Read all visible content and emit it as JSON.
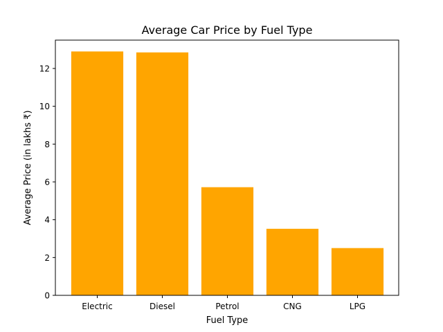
{
  "chart_data": {
    "type": "bar",
    "title": "Average Car Price by Fuel Type",
    "xlabel": "Fuel Type",
    "ylabel": "Average Price (in lakhs ₹)",
    "categories": [
      "Electric",
      "Diesel",
      "Petrol",
      "CNG",
      "LPG"
    ],
    "values": [
      12.9,
      12.85,
      5.72,
      3.52,
      2.5
    ],
    "ylim": [
      0,
      13.5
    ],
    "yticks": [
      0,
      2,
      4,
      6,
      8,
      10,
      12
    ],
    "grid": false,
    "colors": {
      "bar": "#FFA500",
      "axis": "#000000"
    }
  }
}
